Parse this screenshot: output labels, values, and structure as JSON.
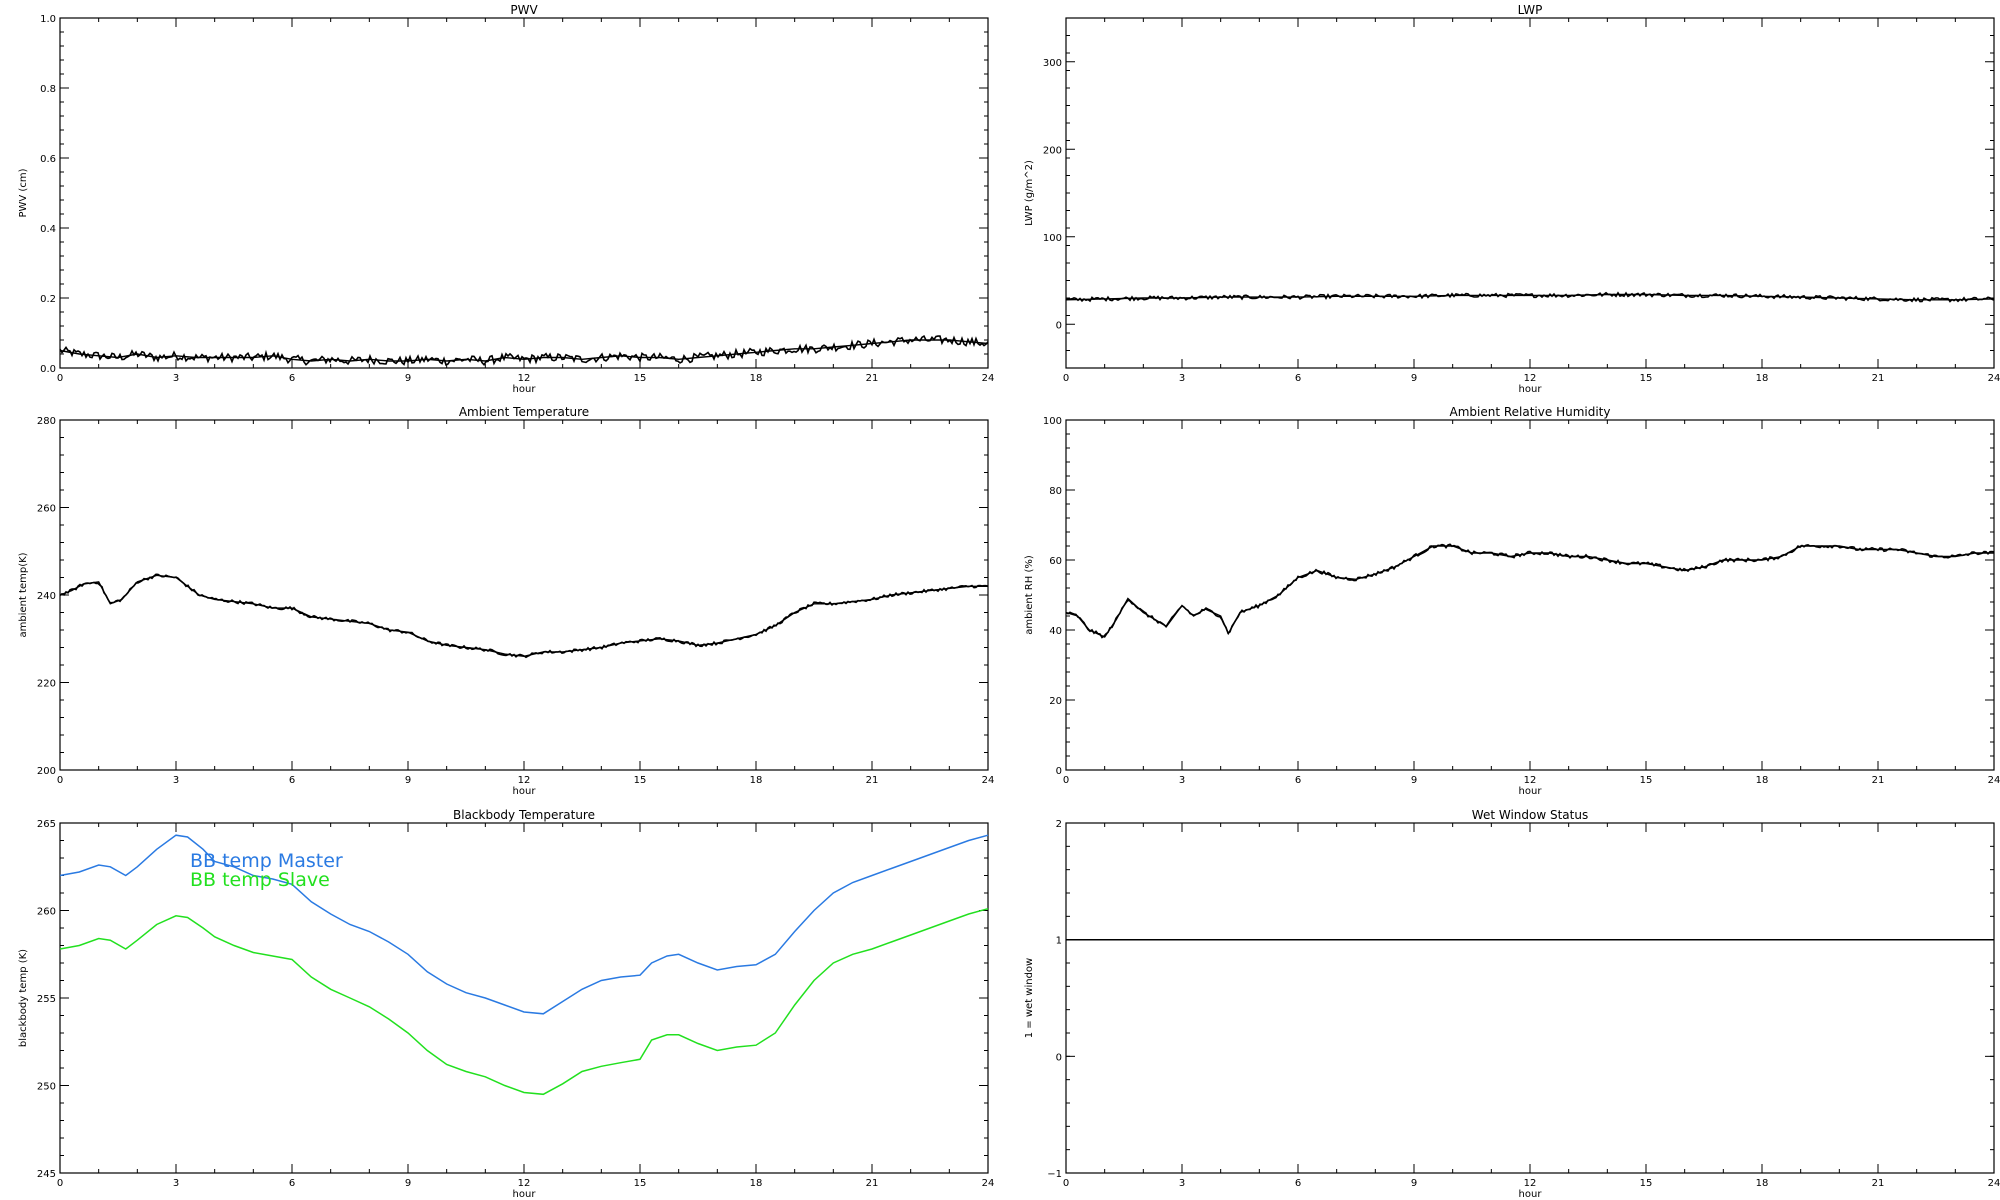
{
  "page": {
    "description_free": true
  },
  "chart_data": [
    {
      "id": "pwv",
      "type": "line",
      "title": "PWV",
      "xlabel": "hour",
      "ylabel": "PWV (cm)",
      "xlim": [
        0,
        24
      ],
      "ylim": [
        0,
        1
      ],
      "xticks": [
        "0",
        "3",
        "6",
        "9",
        "12",
        "15",
        "18",
        "21",
        "24"
      ],
      "yticks": [
        "0.0",
        "0.2",
        "0.4",
        "0.6",
        "0.8",
        "1.0"
      ],
      "noise": 0.012,
      "series": [
        {
          "color": "#000000",
          "x": [
            0,
            0.5,
            1,
            1.5,
            2,
            2.5,
            3,
            3.5,
            4,
            4.5,
            5,
            5.5,
            6,
            6.5,
            7,
            7.5,
            8,
            8.5,
            9,
            9.5,
            10,
            10.5,
            11,
            11.5,
            12,
            12.5,
            13,
            13.5,
            14,
            14.5,
            15,
            15.5,
            16,
            16.5,
            17,
            17.5,
            18,
            18.5,
            19,
            19.5,
            20,
            20.5,
            21,
            21.5,
            22,
            22.5,
            23,
            23.5,
            24
          ],
          "y": [
            0.05,
            0.04,
            0.035,
            0.03,
            0.04,
            0.03,
            0.035,
            0.03,
            0.03,
            0.03,
            0.03,
            0.035,
            0.025,
            0.02,
            0.025,
            0.02,
            0.025,
            0.02,
            0.02,
            0.025,
            0.02,
            0.025,
            0.02,
            0.03,
            0.025,
            0.03,
            0.03,
            0.025,
            0.03,
            0.035,
            0.03,
            0.03,
            0.025,
            0.03,
            0.035,
            0.04,
            0.045,
            0.05,
            0.055,
            0.055,
            0.06,
            0.065,
            0.07,
            0.075,
            0.08,
            0.08,
            0.08,
            0.075,
            0.07
          ]
        }
      ]
    },
    {
      "id": "lwp",
      "type": "line",
      "title": "LWP",
      "xlabel": "hour",
      "ylabel": "LWP (g/m^2)",
      "xlim": [
        0,
        24
      ],
      "ylim": [
        -50,
        350
      ],
      "xticks": [
        "0",
        "3",
        "6",
        "9",
        "12",
        "15",
        "18",
        "21",
        "24"
      ],
      "yticks": [
        "0",
        "100",
        "200",
        "300"
      ],
      "ytick_values": [
        0,
        100,
        200,
        300
      ],
      "noise": 2.2,
      "series": [
        {
          "color": "#000000",
          "x": [
            0,
            1,
            2,
            3,
            4,
            5,
            6,
            7,
            8,
            9,
            10,
            11,
            12,
            13,
            14,
            15,
            16,
            17,
            18,
            19,
            20,
            21,
            22,
            23,
            24
          ],
          "y": [
            28,
            29,
            30,
            30,
            31,
            31,
            31,
            32,
            32,
            32,
            33,
            33,
            33,
            33,
            34,
            34,
            33,
            33,
            32,
            31,
            30,
            29,
            28,
            28,
            29
          ]
        }
      ]
    },
    {
      "id": "ambient-temperature",
      "type": "line",
      "title": "Ambient Temperature",
      "xlabel": "hour",
      "ylabel": "ambient temp(K)",
      "xlim": [
        0,
        24
      ],
      "ylim": [
        200,
        280
      ],
      "xticks": [
        "0",
        "3",
        "6",
        "9",
        "12",
        "15",
        "18",
        "21",
        "24"
      ],
      "yticks": [
        "200",
        "220",
        "240",
        "260",
        "280"
      ],
      "ytick_values": [
        200,
        220,
        240,
        260,
        280
      ],
      "noise": 0.35,
      "series": [
        {
          "color": "#000000",
          "x": [
            0,
            0.3,
            0.6,
            1,
            1.3,
            1.6,
            2,
            2.5,
            3,
            3.3,
            3.6,
            4,
            4.5,
            5,
            5.5,
            6,
            6.5,
            7,
            7.5,
            8,
            8.5,
            9,
            9.5,
            10,
            10.5,
            11,
            11.5,
            12,
            12.5,
            13,
            13.5,
            14,
            14.5,
            15,
            15.5,
            16,
            16.5,
            17,
            17.5,
            18,
            18.5,
            19,
            19.5,
            20,
            20.5,
            21,
            21.5,
            22,
            22.5,
            23,
            23.5,
            24
          ],
          "y": [
            240,
            241,
            242.5,
            243,
            238,
            239,
            243,
            244.5,
            244,
            242,
            240,
            239,
            238.5,
            238,
            237,
            237,
            235,
            234.5,
            234,
            233.5,
            232,
            231.5,
            229.5,
            228.5,
            228,
            227.5,
            226.5,
            226,
            227,
            227,
            227.5,
            228,
            229,
            229.5,
            230,
            229.5,
            228.5,
            229,
            230,
            231,
            233,
            236,
            238,
            238,
            238.5,
            239,
            240,
            240.5,
            241,
            241.5,
            242,
            242
          ]
        }
      ]
    },
    {
      "id": "ambient-relative-humidity",
      "type": "line",
      "title": "Ambient Relative Humidity",
      "xlabel": "hour",
      "ylabel": "ambient RH (%)",
      "xlim": [
        0,
        24
      ],
      "ylim": [
        0,
        100
      ],
      "xticks": [
        "0",
        "3",
        "6",
        "9",
        "12",
        "15",
        "18",
        "21",
        "24"
      ],
      "yticks": [
        "0",
        "20",
        "40",
        "60",
        "80",
        "100"
      ],
      "ytick_values": [
        0,
        20,
        40,
        60,
        80,
        100
      ],
      "noise": 0.5,
      "series": [
        {
          "color": "#000000",
          "x": [
            0,
            0.3,
            0.6,
            1,
            1.3,
            1.6,
            2,
            2.3,
            2.6,
            3,
            3.3,
            3.6,
            4,
            4.2,
            4.5,
            5,
            5.5,
            6,
            6.5,
            7,
            7.5,
            8,
            8.5,
            9,
            9.5,
            10,
            10.5,
            11,
            11.5,
            12,
            12.5,
            13,
            13.5,
            14,
            14.5,
            15,
            15.5,
            16,
            16.5,
            17,
            17.5,
            18,
            18.5,
            19,
            19.5,
            20,
            20.5,
            21,
            21.5,
            22,
            22.5,
            23,
            23.5,
            24
          ],
          "y": [
            45,
            44,
            40,
            38,
            43,
            49,
            45,
            43,
            41,
            47,
            44,
            46,
            44,
            39,
            45,
            47,
            50,
            55,
            57,
            55,
            54.5,
            56,
            58,
            61,
            64,
            64,
            62,
            62,
            61,
            62,
            62,
            61,
            61,
            60,
            59,
            59,
            58,
            57,
            58,
            60,
            60,
            60,
            61,
            64,
            64,
            64,
            63,
            63,
            63,
            62,
            61,
            61,
            62,
            62
          ]
        }
      ]
    },
    {
      "id": "blackbody-temperature",
      "type": "line",
      "title": "Blackbody Temperature",
      "xlabel": "hour",
      "ylabel": "blackbody temp (K)",
      "xlim": [
        0,
        24
      ],
      "ylim": [
        245,
        265
      ],
      "xticks": [
        "0",
        "3",
        "6",
        "9",
        "12",
        "15",
        "18",
        "21",
        "24"
      ],
      "yticks": [
        "245",
        "250",
        "255",
        "260",
        "265"
      ],
      "ytick_values": [
        245,
        250,
        255,
        260,
        265
      ],
      "legend": [
        "BB temp Master",
        "BB temp Slave"
      ],
      "series": [
        {
          "name": "BB temp Master",
          "color": "#2a7ae2",
          "x": [
            0,
            0.5,
            1,
            1.3,
            1.7,
            2,
            2.5,
            3,
            3.3,
            3.7,
            4,
            4.5,
            5,
            5.5,
            6,
            6.5,
            7,
            7.5,
            8,
            8.5,
            9,
            9.5,
            10,
            10.5,
            11,
            11.5,
            12,
            12.5,
            13,
            13.5,
            14,
            14.5,
            15,
            15.3,
            15.7,
            16,
            16.5,
            17,
            17.5,
            18,
            18.5,
            19,
            19.5,
            20,
            20.5,
            21,
            21.5,
            22,
            22.5,
            23,
            23.5,
            24
          ],
          "y": [
            262,
            262.2,
            262.6,
            262.5,
            262,
            262.5,
            263.5,
            264.3,
            264.2,
            263.5,
            262.8,
            262.5,
            262,
            261.8,
            261.5,
            260.5,
            259.8,
            259.2,
            258.8,
            258.2,
            257.5,
            256.5,
            255.8,
            255.3,
            255,
            254.6,
            254.2,
            254.1,
            254.8,
            255.5,
            256,
            256.2,
            256.3,
            257,
            257.4,
            257.5,
            257,
            256.6,
            256.8,
            256.9,
            257.5,
            258.8,
            260,
            261,
            261.6,
            262,
            262.4,
            262.8,
            263.2,
            263.6,
            264,
            264.3
          ]
        },
        {
          "name": "BB temp Slave",
          "color": "#22e01f",
          "x": [
            0,
            0.5,
            1,
            1.3,
            1.7,
            2,
            2.5,
            3,
            3.3,
            3.7,
            4,
            4.5,
            5,
            5.5,
            6,
            6.5,
            7,
            7.5,
            8,
            8.5,
            9,
            9.5,
            10,
            10.5,
            11,
            11.5,
            12,
            12.5,
            13,
            13.5,
            14,
            14.5,
            15,
            15.3,
            15.7,
            16,
            16.5,
            17,
            17.5,
            18,
            18.5,
            19,
            19.5,
            20,
            20.5,
            21,
            21.5,
            22,
            22.5,
            23,
            23.5,
            24
          ],
          "y": [
            257.8,
            258,
            258.4,
            258.3,
            257.8,
            258.3,
            259.2,
            259.7,
            259.6,
            259,
            258.5,
            258,
            257.6,
            257.4,
            257.2,
            256.2,
            255.5,
            255,
            254.5,
            253.8,
            253,
            252,
            251.2,
            250.8,
            250.5,
            250,
            249.6,
            249.5,
            250.1,
            250.8,
            251.1,
            251.3,
            251.5,
            252.6,
            252.9,
            252.9,
            252.4,
            252,
            252.2,
            252.3,
            253,
            254.6,
            256,
            257,
            257.5,
            257.8,
            258.2,
            258.6,
            259,
            259.4,
            259.8,
            260.1
          ]
        }
      ]
    },
    {
      "id": "wet-window-status",
      "type": "line",
      "title": "Wet Window Status",
      "xlabel": "hour",
      "ylabel": "1 = wet window",
      "xlim": [
        0,
        24
      ],
      "ylim": [
        -1,
        2
      ],
      "xticks": [
        "0",
        "3",
        "6",
        "9",
        "12",
        "15",
        "18",
        "21",
        "24"
      ],
      "yticks": [
        "−1",
        "0",
        "1",
        "2"
      ],
      "ytick_values": [
        -1,
        0,
        1,
        2
      ],
      "series": [
        {
          "color": "#000000",
          "x": [
            0,
            24
          ],
          "y": [
            1,
            1
          ]
        }
      ]
    }
  ]
}
